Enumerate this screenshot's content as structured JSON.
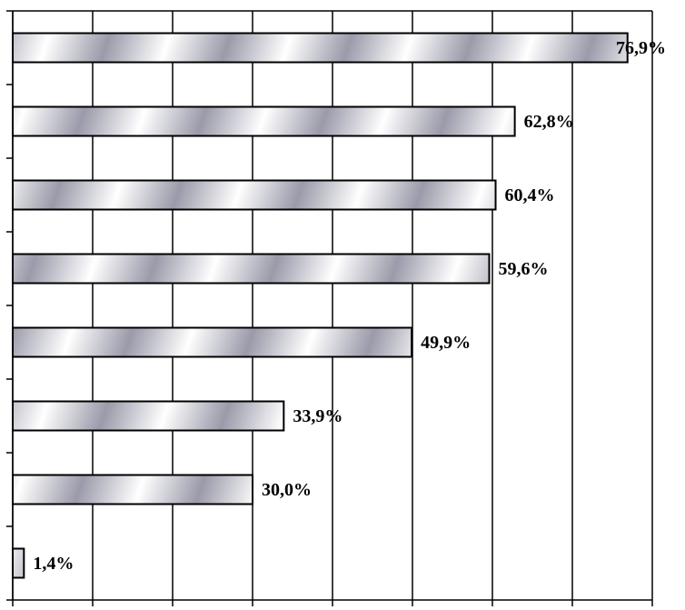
{
  "chart_data": {
    "type": "barh",
    "categories": [
      null,
      null,
      null,
      null,
      null,
      null,
      null,
      null
    ],
    "values": [
      76.9,
      62.8,
      60.4,
      59.6,
      49.9,
      33.9,
      30.0,
      1.4
    ],
    "value_labels": [
      "76,9%",
      "62,8%",
      "60,4%",
      "59,6%",
      "49,9%",
      "33,9%",
      "30,0%",
      "1,4%"
    ],
    "color": "#9a9aaa",
    "xlim": [
      0,
      80
    ],
    "xticks": [
      0,
      10,
      20,
      30,
      40,
      50,
      60,
      70,
      80
    ],
    "grid": true
  }
}
